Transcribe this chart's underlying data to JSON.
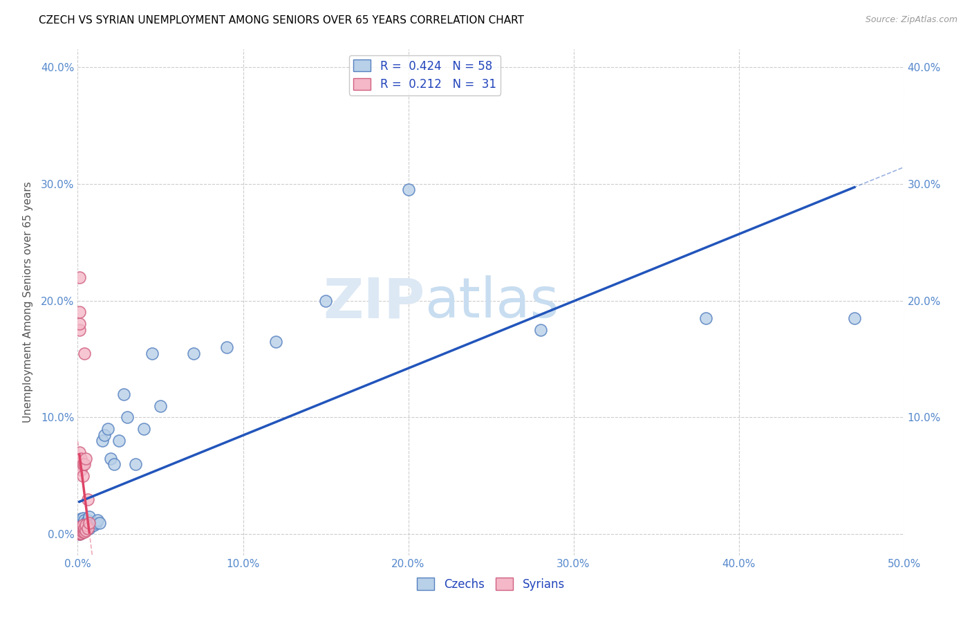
{
  "title": "CZECH VS SYRIAN UNEMPLOYMENT AMONG SENIORS OVER 65 YEARS CORRELATION CHART",
  "source": "Source: ZipAtlas.com",
  "ylabel": "Unemployment Among Seniors over 65 years",
  "xlim": [
    0,
    0.5
  ],
  "ylim": [
    -0.018,
    0.415
  ],
  "xtick_vals": [
    0.0,
    0.1,
    0.2,
    0.3,
    0.4,
    0.5
  ],
  "xtick_labels": [
    "0.0%",
    "10.0%",
    "20.0%",
    "30.0%",
    "40.0%",
    "50.0%"
  ],
  "ytick_left_vals": [
    0.0,
    0.1,
    0.2,
    0.3,
    0.4
  ],
  "ytick_left_labels": [
    "0.0%",
    "10.0%",
    "20.0%",
    "30.0%",
    "40.0%"
  ],
  "ytick_right_vals": [
    0.1,
    0.2,
    0.3,
    0.4
  ],
  "ytick_right_labels": [
    "10.0%",
    "20.0%",
    "30.0%",
    "40.0%"
  ],
  "czech_color": "#b8d0e8",
  "syrian_color": "#f4b8c8",
  "czech_edge_color": "#5580c0",
  "syrian_edge_color": "#d06080",
  "trendline_czech_color": "#2255bb",
  "trendline_syrian_color": "#dd4466",
  "R_czech": 0.424,
  "N_czech": 58,
  "R_syrian": 0.212,
  "N_syrian": 31,
  "czech_x": [
    0.001,
    0.001,
    0.001,
    0.001,
    0.001,
    0.001,
    0.001,
    0.001,
    0.001,
    0.001,
    0.002,
    0.002,
    0.002,
    0.002,
    0.002,
    0.002,
    0.002,
    0.003,
    0.003,
    0.003,
    0.003,
    0.003,
    0.003,
    0.004,
    0.004,
    0.004,
    0.005,
    0.005,
    0.006,
    0.006,
    0.007,
    0.007,
    0.008,
    0.009,
    0.01,
    0.011,
    0.012,
    0.013,
    0.015,
    0.016,
    0.018,
    0.02,
    0.022,
    0.025,
    0.028,
    0.03,
    0.035,
    0.04,
    0.045,
    0.05,
    0.07,
    0.09,
    0.12,
    0.15,
    0.2,
    0.28,
    0.38,
    0.47
  ],
  "czech_y": [
    0.0,
    0.001,
    0.002,
    0.003,
    0.004,
    0.005,
    0.006,
    0.007,
    0.008,
    0.01,
    0.001,
    0.002,
    0.003,
    0.005,
    0.007,
    0.01,
    0.013,
    0.002,
    0.004,
    0.006,
    0.008,
    0.01,
    0.014,
    0.005,
    0.008,
    0.012,
    0.004,
    0.01,
    0.005,
    0.012,
    0.005,
    0.015,
    0.008,
    0.008,
    0.008,
    0.01,
    0.012,
    0.01,
    0.08,
    0.085,
    0.09,
    0.065,
    0.06,
    0.08,
    0.12,
    0.1,
    0.06,
    0.09,
    0.155,
    0.11,
    0.155,
    0.16,
    0.165,
    0.2,
    0.295,
    0.175,
    0.185,
    0.185
  ],
  "syrian_x": [
    0.001,
    0.001,
    0.001,
    0.001,
    0.001,
    0.001,
    0.001,
    0.001,
    0.001,
    0.001,
    0.001,
    0.002,
    0.002,
    0.002,
    0.002,
    0.002,
    0.003,
    0.003,
    0.003,
    0.003,
    0.003,
    0.004,
    0.004,
    0.004,
    0.004,
    0.005,
    0.005,
    0.005,
    0.006,
    0.006,
    0.007
  ],
  "syrian_y": [
    0.0,
    0.001,
    0.002,
    0.004,
    0.006,
    0.06,
    0.07,
    0.175,
    0.18,
    0.19,
    0.22,
    0.001,
    0.003,
    0.005,
    0.055,
    0.065,
    0.002,
    0.005,
    0.008,
    0.05,
    0.06,
    0.002,
    0.005,
    0.06,
    0.155,
    0.003,
    0.008,
    0.065,
    0.005,
    0.03,
    0.01
  ]
}
